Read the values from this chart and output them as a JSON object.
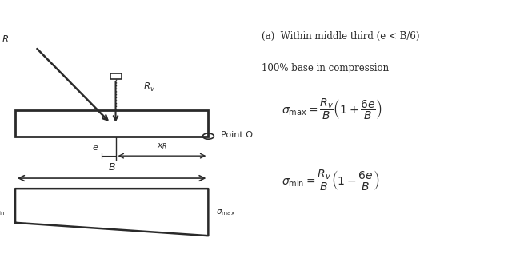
{
  "bg_color": "#ffffff",
  "fig_width": 6.35,
  "fig_height": 3.28,
  "dpi": 100,
  "title_text": "(a)  Within middle third (e < B/6)",
  "subtitle_text": "100% base in compression",
  "eq1": "$\\sigma_{\\mathrm{max}} = \\dfrac{R_v}{B}\\left(1+\\dfrac{6e}{B}\\right)$",
  "eq2": "$\\sigma_{\\mathrm{min}} = \\dfrac{R_v}{B}\\left(1-\\dfrac{6e}{B}\\right)$",
  "label_R": "$R$",
  "label_Rv": "$R_v$",
  "label_B": "$B$",
  "label_e": "$e$",
  "label_xR": "$x_R$",
  "label_PointO": "Point O",
  "label_sigma_min": "$\\sigma_{\\mathrm{min}}$",
  "label_sigma_max": "$\\sigma_{\\mathrm{max}}$",
  "text_color": "#2a2a2a",
  "line_color": "#2a2a2a",
  "font_size_labels": 8.5,
  "font_size_eq_title": 8.5,
  "font_size_eq": 10
}
